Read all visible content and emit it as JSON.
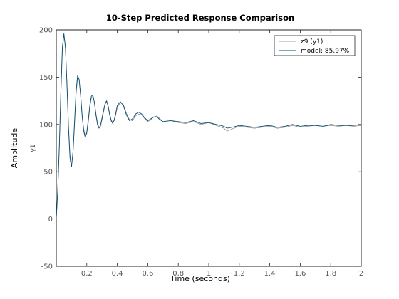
{
  "chart_data": {
    "type": "line",
    "title": "10-Step Predicted Response Comparison",
    "xlabel": "Time (seconds)",
    "ylabel": "Amplitude",
    "y_channel_label": "y1",
    "xlim": [
      0,
      2
    ],
    "ylim": [
      -50,
      200
    ],
    "xticks": [
      0.2,
      0.4,
      0.6,
      0.8,
      1,
      1.2,
      1.4,
      1.6,
      1.8,
      2
    ],
    "xtick_labels": [
      "0.2",
      "0.4",
      "0.6",
      "0.8",
      "1",
      "1.2",
      "1.4",
      "1.6",
      "1.8",
      "2"
    ],
    "yticks": [
      -50,
      0,
      50,
      100,
      150,
      200
    ],
    "ytick_labels": [
      "-50",
      "0",
      "50",
      "100",
      "150",
      "200"
    ],
    "grid": false,
    "legend_position": "top-right",
    "series": [
      {
        "name": "z9 (y1)",
        "color": "#808080",
        "x": [
          0,
          0.01,
          0.02,
          0.03,
          0.04,
          0.05,
          0.06,
          0.07,
          0.08,
          0.09,
          0.1,
          0.11,
          0.12,
          0.13,
          0.14,
          0.15,
          0.16,
          0.17,
          0.18,
          0.19,
          0.2,
          0.21,
          0.22,
          0.23,
          0.24,
          0.25,
          0.26,
          0.27,
          0.28,
          0.29,
          0.3,
          0.31,
          0.32,
          0.33,
          0.34,
          0.35,
          0.36,
          0.37,
          0.38,
          0.39,
          0.4,
          0.42,
          0.44,
          0.46,
          0.48,
          0.5,
          0.52,
          0.54,
          0.56,
          0.58,
          0.6,
          0.62,
          0.64,
          0.66,
          0.68,
          0.7,
          0.75,
          0.8,
          0.85,
          0.9,
          0.95,
          1.0,
          1.05,
          1.1,
          1.12,
          1.15,
          1.18,
          1.2,
          1.25,
          1.3,
          1.35,
          1.4,
          1.45,
          1.5,
          1.55,
          1.6,
          1.65,
          1.7,
          1.75,
          1.8,
          1.85,
          1.9,
          1.95,
          2.0
        ],
        "y": [
          0,
          30,
          75,
          130,
          178,
          195,
          180,
          145,
          100,
          68,
          57,
          70,
          100,
          132,
          150,
          148,
          132,
          110,
          95,
          88,
          90,
          102,
          118,
          128,
          130,
          124,
          112,
          102,
          97,
          98,
          105,
          113,
          121,
          124,
          120,
          112,
          105,
          102,
          104,
          110,
          118,
          123,
          121,
          112,
          105,
          104,
          109,
          111,
          110,
          106,
          103,
          105,
          108,
          109,
          106,
          103,
          104,
          102,
          101,
          103,
          100,
          102,
          99,
          96,
          93,
          95,
          97,
          98,
          97,
          96,
          97,
          98,
          96,
          97,
          99,
          97,
          98,
          99,
          98,
          99,
          98,
          99,
          98,
          99
        ]
      },
      {
        "name": "model: 85.97%",
        "color": "#0a4f73",
        "x": [
          0,
          0.01,
          0.02,
          0.03,
          0.04,
          0.05,
          0.06,
          0.07,
          0.08,
          0.09,
          0.1,
          0.11,
          0.12,
          0.13,
          0.14,
          0.15,
          0.16,
          0.17,
          0.18,
          0.19,
          0.2,
          0.21,
          0.22,
          0.23,
          0.24,
          0.25,
          0.26,
          0.27,
          0.28,
          0.29,
          0.3,
          0.31,
          0.32,
          0.33,
          0.34,
          0.35,
          0.36,
          0.37,
          0.38,
          0.39,
          0.4,
          0.42,
          0.44,
          0.46,
          0.48,
          0.5,
          0.52,
          0.54,
          0.56,
          0.58,
          0.6,
          0.62,
          0.64,
          0.66,
          0.68,
          0.7,
          0.75,
          0.8,
          0.85,
          0.9,
          0.95,
          1.0,
          1.05,
          1.1,
          1.12,
          1.15,
          1.18,
          1.2,
          1.25,
          1.3,
          1.35,
          1.4,
          1.45,
          1.5,
          1.55,
          1.6,
          1.65,
          1.7,
          1.75,
          1.8,
          1.85,
          1.9,
          1.95,
          2.0
        ],
        "y": [
          0,
          32,
          78,
          135,
          182,
          196,
          182,
          142,
          96,
          64,
          55,
          72,
          104,
          136,
          152,
          147,
          130,
          108,
          93,
          86,
          92,
          105,
          120,
          130,
          131,
          123,
          110,
          100,
          96,
          99,
          107,
          115,
          122,
          125,
          119,
          110,
          104,
          101,
          105,
          112,
          120,
          124,
          120,
          110,
          104,
          106,
          111,
          113,
          111,
          107,
          104,
          106,
          108,
          108,
          105,
          103,
          104,
          103,
          102,
          104,
          101,
          102,
          100,
          98,
          96,
          97,
          98,
          99,
          98,
          97,
          98,
          99,
          97,
          98,
          100,
          98,
          99,
          99,
          98,
          100,
          99,
          99,
          99,
          100
        ]
      }
    ]
  }
}
